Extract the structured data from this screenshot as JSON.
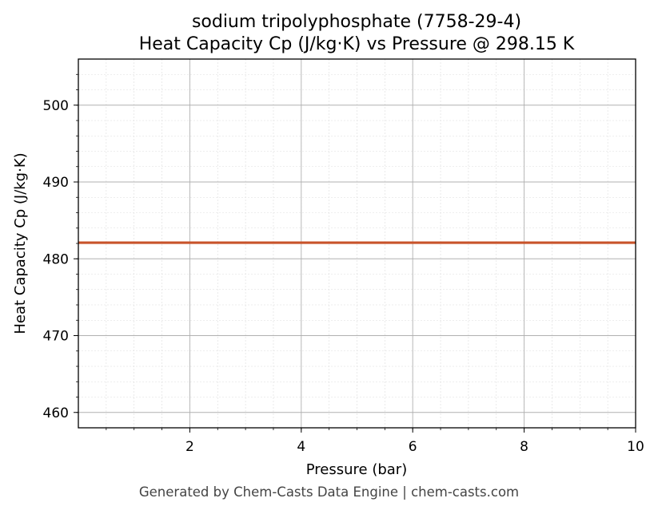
{
  "chart_data": {
    "type": "line",
    "title": "sodium tripolyphosphate (7758-29-4)",
    "subtitle": "Heat Capacity Cp (J/kg·K) vs Pressure @ 298.15 K",
    "xlabel": "Pressure (bar)",
    "ylabel": "Heat Capacity Cp (J/kg·K)",
    "xlim": [
      0,
      10
    ],
    "ylim": [
      458,
      506
    ],
    "x_ticks": [
      2,
      4,
      6,
      8,
      10
    ],
    "y_ticks": [
      460,
      470,
      480,
      490,
      500
    ],
    "grid": true,
    "series": [
      {
        "x": [
          0,
          1,
          2,
          3,
          4,
          5,
          6,
          7,
          8,
          9,
          10
        ],
        "values": [
          482.1,
          482.1,
          482.1,
          482.1,
          482.1,
          482.1,
          482.1,
          482.1,
          482.1,
          482.1,
          482.1
        ],
        "color": "#c8532a"
      }
    ]
  },
  "footer": "Generated by Chem-Casts Data Engine | chem-casts.com"
}
